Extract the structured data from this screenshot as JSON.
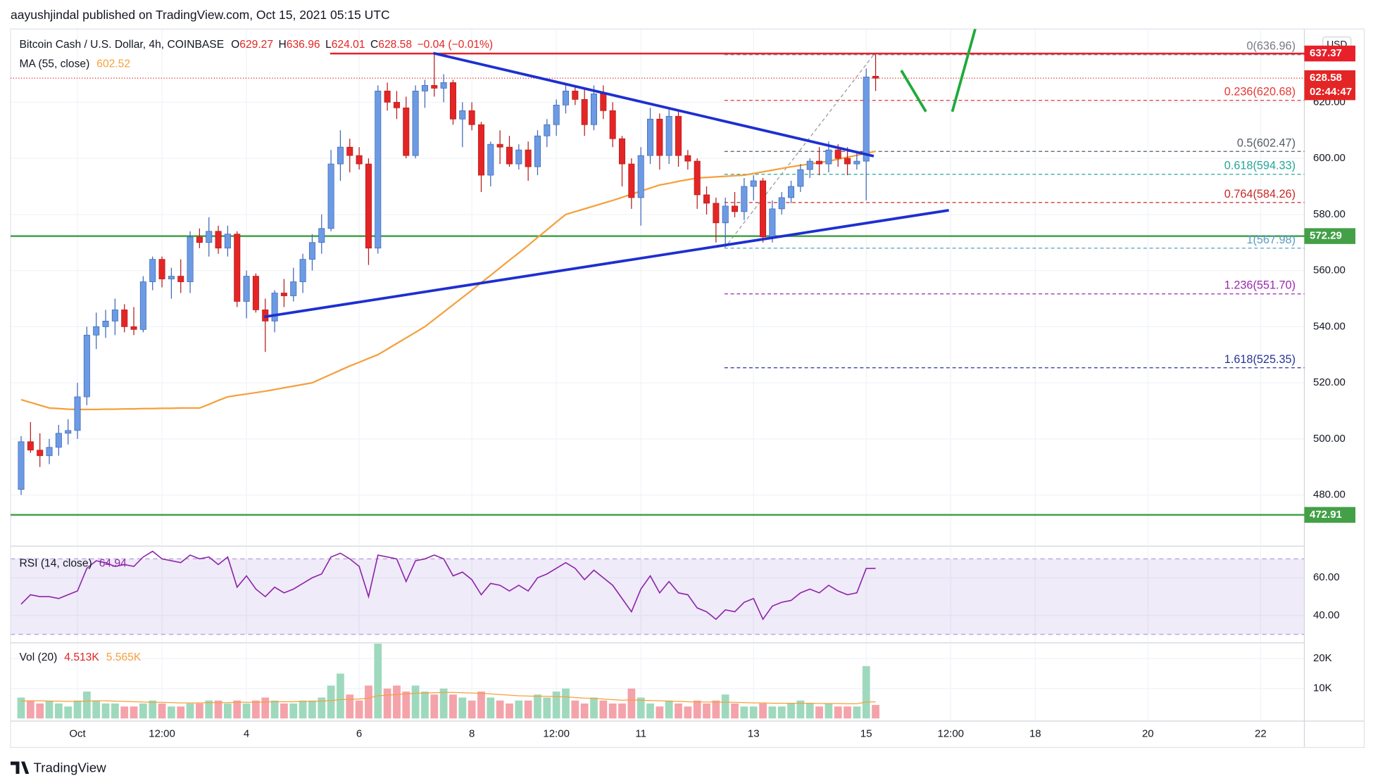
{
  "header": {
    "publisher": "aayushjindal published on TradingView.com, Oct 15, 2021 05:15 UTC",
    "currency": "USD"
  },
  "chart_data": [
    {
      "type": "candlestick",
      "title": "Bitcoin Cash / U.S. Dollar, 4h, COINBASE",
      "ohlc_legend": [
        {
          "key": "O",
          "value": "629.27"
        },
        {
          "key": "H",
          "value": "636.96"
        },
        {
          "key": "L",
          "value": "624.01"
        },
        {
          "key": "C",
          "value": "628.58"
        }
      ],
      "change": "−0.04 (−0.01%)",
      "up_color": "#6c9be4",
      "down_color": "#e42525",
      "xlim": [
        -1.125,
        136.66
      ],
      "xticks": [
        {
          "value": 6,
          "label": "Oct"
        },
        {
          "value": 15,
          "label": "12:00"
        },
        {
          "value": 24,
          "label": "4"
        },
        {
          "value": 36,
          "label": "6"
        },
        {
          "value": 48,
          "label": "8"
        },
        {
          "value": 57,
          "label": "12:00"
        },
        {
          "value": 66,
          "label": "11"
        },
        {
          "value": 78,
          "label": "13"
        },
        {
          "value": 90,
          "label": "15"
        },
        {
          "value": 99,
          "label": "12:00"
        },
        {
          "value": 108,
          "label": "18"
        },
        {
          "value": 120,
          "label": "20"
        },
        {
          "value": 132,
          "label": "22"
        }
      ],
      "ylim": [
        462.1,
        646.1
      ],
      "yticks": [
        {
          "value": 480,
          "label": "480.00"
        },
        {
          "value": 500,
          "label": "500.00"
        },
        {
          "value": 520,
          "label": "520.00"
        },
        {
          "value": 540,
          "label": "540.00"
        },
        {
          "value": 560,
          "label": "560.00"
        },
        {
          "value": 580,
          "label": "580.00"
        },
        {
          "value": 600,
          "label": "600.00"
        },
        {
          "value": 620,
          "label": "620.00"
        }
      ],
      "open": [
        482,
        499,
        496,
        494,
        497,
        502,
        503,
        515,
        537,
        540,
        542,
        546,
        540,
        539,
        556,
        564,
        557,
        558,
        556,
        572,
        570,
        574,
        568,
        573,
        549,
        558,
        546,
        542,
        552,
        551,
        556,
        564,
        570,
        575,
        598,
        604,
        601,
        598,
        568,
        624,
        620,
        618,
        601,
        624,
        626,
        625,
        627,
        614,
        617,
        612,
        594,
        605,
        604,
        598,
        603,
        597,
        608,
        612,
        619,
        624,
        621,
        612,
        623,
        617,
        607,
        598,
        586,
        601,
        614,
        601,
        615,
        601,
        599,
        587,
        584,
        577,
        583,
        581,
        590,
        592,
        572,
        582,
        586,
        590,
        596,
        599,
        598,
        603,
        600,
        598,
        599,
        629.27
      ],
      "high": [
        501,
        506,
        502,
        500,
        505,
        507,
        520,
        540,
        545,
        546,
        550,
        548,
        547,
        558,
        565,
        565,
        561,
        564,
        574,
        575,
        579,
        576,
        576,
        574,
        560,
        559,
        550,
        553,
        557,
        561,
        566,
        573,
        580,
        603,
        610,
        607,
        604,
        600,
        626,
        627,
        624,
        622,
        626,
        628,
        637,
        630,
        628,
        620,
        620,
        613,
        606,
        610,
        608,
        605,
        606,
        610,
        614,
        621,
        626,
        626,
        625,
        626,
        626,
        620,
        608,
        600,
        604,
        618,
        616,
        618,
        617,
        603,
        600,
        590,
        586,
        586,
        588,
        593,
        594,
        593,
        585,
        588,
        592,
        598,
        600,
        604,
        606,
        605,
        604,
        602,
        632,
        636.96
      ],
      "low": [
        480,
        495,
        490,
        491,
        494,
        498,
        500,
        512,
        532,
        536,
        537,
        538,
        537,
        538,
        553,
        554,
        550,
        552,
        552,
        568,
        565,
        566,
        565,
        547,
        543,
        545,
        531,
        538,
        547,
        549,
        552,
        560,
        566,
        574,
        592,
        595,
        596,
        562,
        566,
        617,
        614,
        600,
        600,
        618,
        622,
        620,
        612,
        604,
        610,
        588,
        590,
        598,
        597,
        596,
        592,
        594,
        604,
        608,
        616,
        619,
        608,
        610,
        614,
        604,
        590,
        582,
        576,
        598,
        596,
        598,
        597,
        596,
        582,
        580,
        570,
        569,
        579,
        578,
        585,
        570,
        570,
        580,
        584,
        588,
        593,
        594,
        595,
        597,
        594,
        596,
        585,
        624.01
      ],
      "close": [
        499,
        496,
        494,
        497,
        502,
        503,
        515,
        537,
        540,
        542,
        546,
        540,
        539,
        556,
        564,
        557,
        558,
        556,
        572,
        570,
        574,
        568,
        573,
        549,
        558,
        546,
        542,
        552,
        551,
        556,
        564,
        570,
        575,
        598,
        604,
        601,
        598,
        568,
        624,
        620,
        618,
        601,
        624,
        626,
        625,
        627,
        614,
        617,
        612,
        594,
        605,
        604,
        598,
        603,
        597,
        608,
        612,
        619,
        624,
        621,
        612,
        623,
        617,
        607,
        598,
        586,
        601,
        614,
        601,
        615,
        601,
        599,
        587,
        584,
        577,
        583,
        581,
        590,
        592,
        572,
        582,
        586,
        590,
        596,
        599,
        598,
        603,
        600,
        598,
        599,
        629,
        628.58
      ],
      "series": [
        {
          "name": "MA (55, close)",
          "color": "#f5a03c",
          "last_label": "602.52",
          "values": [
            514,
            513,
            512,
            511,
            510.8,
            510.6,
            510.5,
            510.5,
            510.5,
            510.6,
            510.6,
            510.7,
            510.7,
            510.8,
            510.8,
            510.9,
            510.9,
            511,
            511,
            511,
            512.3,
            513.7,
            515,
            515.5,
            516,
            516.5,
            517,
            517.6,
            518.2,
            518.8,
            519.4,
            520,
            521.5,
            523,
            524.5,
            526,
            527.3,
            528.7,
            530,
            532,
            534,
            536,
            538,
            540,
            542.6,
            545.2,
            547.8,
            550.4,
            553,
            555.7,
            558.3,
            561,
            563.7,
            566.3,
            569,
            571.8,
            574.5,
            577.3,
            580,
            581,
            582,
            583,
            584,
            585,
            586.1,
            587.2,
            588.3,
            589.4,
            590.5,
            591.1,
            591.8,
            592.4,
            593,
            593.2,
            593.4,
            593.6,
            593.8,
            594,
            594.6,
            595.2,
            595.8,
            596.4,
            597,
            597.5,
            598,
            598.5,
            599,
            599.7,
            600.4,
            601.1,
            601.8,
            602.52
          ]
        }
      ],
      "resistance": {
        "value": 637.37,
        "color": "#e8202a",
        "x_start": 32.9
      },
      "price_lines": [
        {
          "value": 572.29,
          "color": "#43a047"
        },
        {
          "value": 472.91,
          "color": "#43a047"
        }
      ],
      "countdown": "02:44:47",
      "trendlines": [
        {
          "color": "#1d2fd1",
          "x": [
            43.9,
            90.8
          ],
          "y": [
            637.5,
            600.8
          ]
        },
        {
          "color": "#1d2fd1",
          "x": [
            25.9,
            98.8
          ],
          "y": [
            543.5,
            581.5
          ]
        }
      ],
      "fib": {
        "x": [
          74.9,
          90.8
        ],
        "levels": [
          {
            "ratio_label": "0(636.96)",
            "value": 636.96,
            "color": "#787b86"
          },
          {
            "ratio_label": "0.236(620.68)",
            "value": 620.68,
            "color": "#e53935"
          },
          {
            "ratio_label": "0.5(602.47)",
            "value": 602.47,
            "color": "#555b66"
          },
          {
            "ratio_label": "0.618(594.33)",
            "value": 594.33,
            "color": "#26a69a"
          },
          {
            "ratio_label": "0.764(584.26)",
            "value": 584.26,
            "color": "#c62828"
          },
          {
            "ratio_label": "1(567.98)",
            "value": 567.98,
            "color": "#5b9cc4"
          },
          {
            "ratio_label": "1.236(551.70)",
            "value": 551.7,
            "color": "#9c27b0"
          },
          {
            "ratio_label": "1.618(525.35)",
            "value": 525.35,
            "color": "#283593"
          }
        ]
      }
    },
    {
      "type": "line",
      "title": "RSI (14, close)",
      "last_label": "64.94",
      "color": "#8e24aa",
      "band": [
        30,
        70
      ],
      "ylim": [
        26,
        76.3
      ],
      "yticks": [
        {
          "value": 40,
          "label": "40.00"
        },
        {
          "value": 60,
          "label": "60.00"
        }
      ],
      "values": [
        46,
        51,
        50,
        50,
        49,
        51,
        53,
        65,
        69,
        68,
        66,
        67,
        66,
        71,
        74,
        70,
        69,
        68,
        72,
        70,
        71,
        67,
        71,
        55,
        61,
        54,
        50,
        55,
        52,
        54,
        57,
        60,
        62,
        71,
        73,
        70,
        66,
        50,
        72,
        71,
        70,
        58,
        69,
        70,
        72,
        70,
        61,
        63,
        59,
        51,
        57,
        56,
        53,
        56,
        53,
        60,
        62,
        65,
        68,
        65,
        59,
        64,
        60,
        56,
        49,
        42,
        54,
        61,
        52,
        58,
        52,
        51,
        44,
        42,
        38,
        43,
        42,
        47,
        49,
        38,
        45,
        47,
        48,
        52,
        54,
        52,
        56,
        53,
        51,
        52,
        64.9,
        64.94
      ]
    },
    {
      "type": "bar",
      "title": "Vol (20)",
      "value_label": "4.513K",
      "ma_label": "5.565K",
      "up_color": "#9fd9bd",
      "down_color": "#f4a3aa",
      "ma_color": "#f5a03c",
      "ylim": [
        0,
        25000
      ],
      "yticks": [
        {
          "value": 10000,
          "label": "10K"
        },
        {
          "value": 20000,
          "label": "20K"
        }
      ],
      "values": [
        7000,
        6000,
        5000,
        6000,
        5000,
        4000,
        6000,
        9000,
        6000,
        5000,
        5000,
        4000,
        4000,
        5000,
        6000,
        5000,
        4000,
        4000,
        5000,
        5000,
        6000,
        6000,
        5000,
        6000,
        5000,
        6000,
        7000,
        6000,
        5000,
        5000,
        6000,
        6000,
        7000,
        11000,
        15000,
        8000,
        6000,
        11000,
        25000,
        10000,
        11000,
        9000,
        11000,
        9000,
        8000,
        10000,
        8000,
        7000,
        6000,
        9000,
        7000,
        6000,
        5000,
        6000,
        6000,
        8000,
        7000,
        9000,
        10000,
        6000,
        5000,
        7000,
        6000,
        5000,
        5000,
        10000,
        7000,
        5000,
        4000,
        6000,
        5000,
        4000,
        6000,
        5000,
        6000,
        8000,
        5000,
        4000,
        4000,
        5000,
        4000,
        4000,
        5000,
        6000,
        5000,
        4000,
        5000,
        4000,
        4000,
        4000,
        17500,
        4513
      ],
      "ma": [
        5800,
        5900,
        5900,
        5800,
        5800,
        5700,
        5700,
        5800,
        5900,
        5900,
        5800,
        5700,
        5600,
        5500,
        5400,
        5400,
        5300,
        5200,
        5200,
        5200,
        5300,
        5300,
        5300,
        5400,
        5400,
        5400,
        5500,
        5600,
        5600,
        5600,
        5700,
        5700,
        5800,
        6000,
        6300,
        6400,
        6500,
        6800,
        7600,
        7800,
        8000,
        8200,
        8400,
        8500,
        8600,
        8700,
        8700,
        8600,
        8500,
        8400,
        8200,
        8000,
        7800,
        7600,
        7500,
        7400,
        7400,
        7300,
        7200,
        7000,
        6800,
        6700,
        6500,
        6300,
        6100,
        6200,
        6100,
        6000,
        5900,
        5800,
        5700,
        5600,
        5500,
        5500,
        5500,
        5400,
        5400,
        5300,
        5200,
        5200,
        5100,
        5100,
        5100,
        5100,
        5100,
        5000,
        5000,
        5000,
        4900,
        4900,
        5500,
        5565
      ]
    }
  ],
  "footer": {
    "brand": "TradingView"
  }
}
